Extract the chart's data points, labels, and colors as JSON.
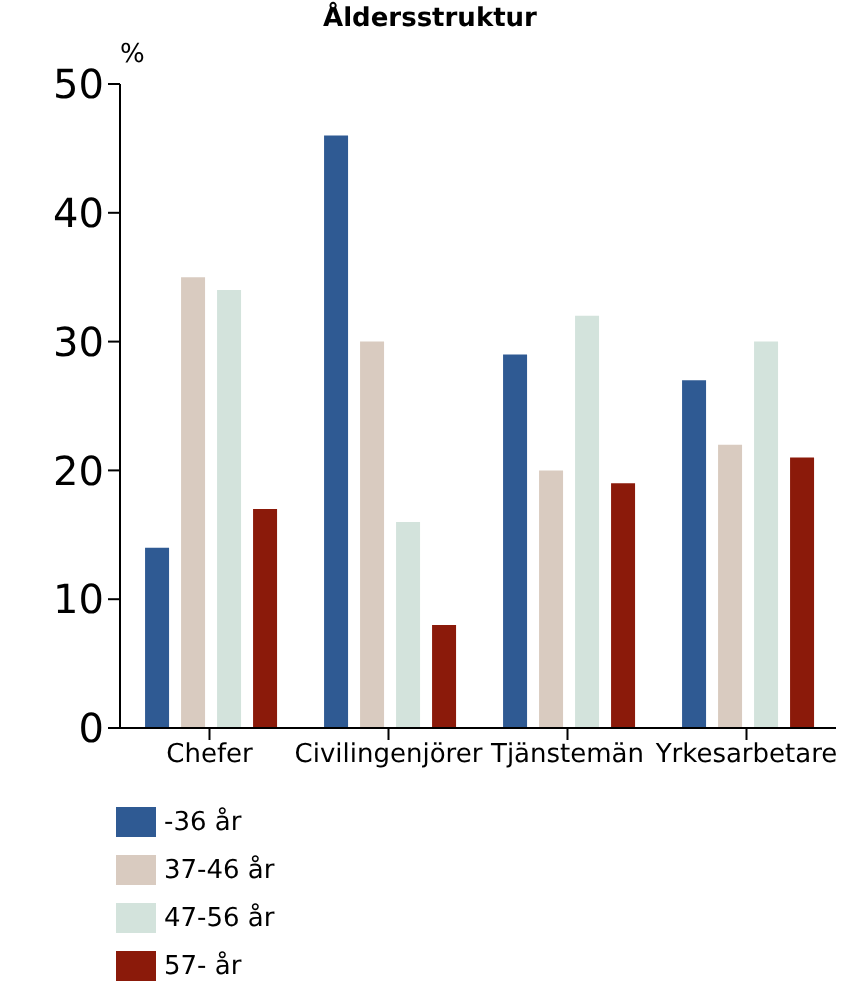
{
  "chart_data": {
    "type": "bar",
    "title": "Åldersstruktur",
    "ylabel": "%",
    "categories": [
      "Chefer",
      "Civilingenjörer",
      "Tjänstemän",
      "Yrkesarbetare"
    ],
    "series": [
      {
        "name": "-36 år",
        "color": "#2f5a93",
        "values": [
          14,
          46,
          29,
          27
        ]
      },
      {
        "name": "37-46 år",
        "color": "#d9cbc0",
        "values": [
          35,
          30,
          20,
          22
        ]
      },
      {
        "name": "47-56 år",
        "color": "#d3e3dc",
        "values": [
          34,
          16,
          32,
          30
        ]
      },
      {
        "name": "57- år",
        "color": "#8b1a0a",
        "values": [
          17,
          8,
          19,
          21
        ]
      }
    ],
    "ylim": [
      0,
      50
    ],
    "yticks": [
      0,
      10,
      20,
      30,
      40,
      50
    ],
    "grid": false,
    "legend": "bottom"
  }
}
